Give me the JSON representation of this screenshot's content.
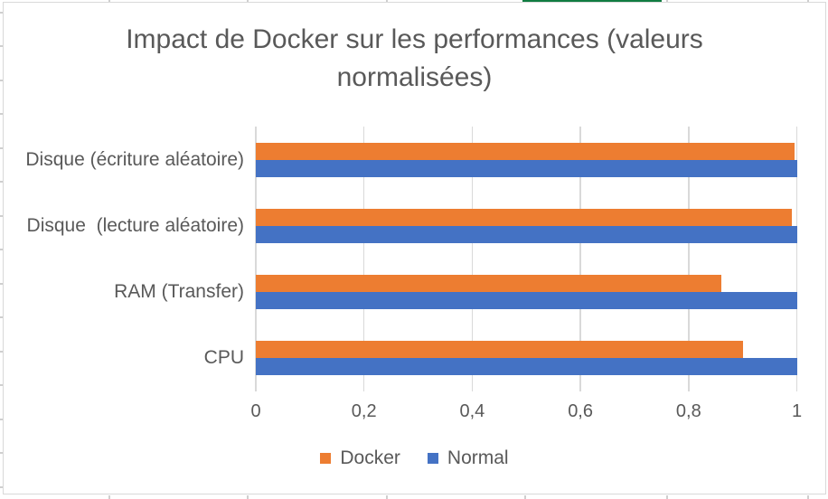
{
  "chart": {
    "title_lines": [
      "Impact de Docker sur les performances (valeurs",
      "normalisées)"
    ],
    "background": "#FFFFFF",
    "border_color": "#D9D9D9",
    "gridline_color": "#D9D9D9",
    "text_color": "#595959",
    "sheet_green_accent": "#107C41"
  },
  "chart_data": {
    "type": "bar",
    "orientation": "horizontal",
    "title": "Impact de Docker sur les performances (valeurs normalisées)",
    "categories": [
      "Disque (écriture aléatoire)",
      "Disque  (lecture aléatoire)",
      "RAM (Transfer)",
      "CPU"
    ],
    "categories_order": "top-to-bottom",
    "series": [
      {
        "name": "Docker",
        "color": "#ED7D31",
        "values": [
          0.995,
          0.99,
          0.86,
          0.9
        ]
      },
      {
        "name": "Normal",
        "color": "#4472C4",
        "values": [
          1.0,
          1.0,
          1.0,
          1.0
        ]
      }
    ],
    "xlabel": "",
    "ylabel": "",
    "xlim": [
      0,
      1
    ],
    "x_ticks": [
      {
        "value": 0,
        "label": "0"
      },
      {
        "value": 0.2,
        "label": "0,2"
      },
      {
        "value": 0.4,
        "label": "0,4"
      },
      {
        "value": 0.6,
        "label": "0,6"
      },
      {
        "value": 0.8,
        "label": "0,8"
      },
      {
        "value": 1,
        "label": "1"
      }
    ],
    "grid": "vertical",
    "legend_position": "bottom"
  }
}
